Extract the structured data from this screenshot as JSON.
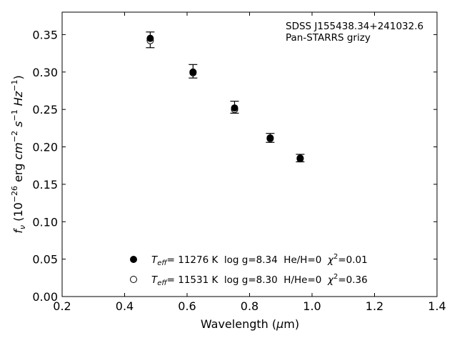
{
  "chart_data": {
    "type": "scatter",
    "annotation": [
      "SDSS J155438.34+241032.6",
      "Pan-STARRS grizy"
    ],
    "xlabel": {
      "prefix": "Wavelength (",
      "symbol": "μ",
      "suffix": "m)"
    },
    "ylabel": {
      "f": "f",
      "nu": "ν",
      "open": " (10",
      "exp26": "−26",
      "erg": " erg ",
      "cm": "cm",
      "m2": "−2",
      "s": " s",
      "m1a": "−1",
      "hz": " Hz",
      "m1b": "−1",
      "close": ")"
    },
    "xlim": [
      0.2,
      1.4
    ],
    "ylim": [
      0.0,
      0.38
    ],
    "xticks": [
      "0.2",
      "0.4",
      "0.6",
      "0.8",
      "1.0",
      "1.2",
      "1.4"
    ],
    "yticks": [
      "0.00",
      "0.05",
      "0.10",
      "0.15",
      "0.20",
      "0.25",
      "0.30",
      "0.35"
    ],
    "grid": false,
    "observed": {
      "x": [
        0.482,
        0.619,
        0.752,
        0.866,
        0.962
      ],
      "y": [
        0.343,
        0.301,
        0.253,
        0.212,
        0.185
      ],
      "yerr": [
        0.0105,
        0.009,
        0.008,
        0.006,
        0.005
      ]
    },
    "series": [
      {
        "marker": "filled",
        "x": [
          0.482,
          0.619,
          0.752,
          0.866,
          0.962
        ],
        "y": [
          0.345,
          0.3,
          0.252,
          0.212,
          0.185
        ],
        "legend": {
          "t": "T",
          "eff": "eff",
          "rest1": "= 11276 K  log g=8.34  He/H=0  ",
          "chi": "χ",
          "sq": "2",
          "rest2": "=0.01"
        }
      },
      {
        "marker": "open",
        "x": [
          0.482,
          0.619,
          0.752,
          0.866,
          0.962
        ],
        "y": [
          0.342,
          0.299,
          0.25,
          0.211,
          0.184
        ],
        "legend": {
          "t": "T",
          "eff": "eff",
          "rest1": "= 11531 K  log g=8.30  H/He=0  ",
          "chi": "χ",
          "sq": "2",
          "rest2": "=0.36"
        }
      }
    ],
    "legend_position": "lower-center"
  }
}
